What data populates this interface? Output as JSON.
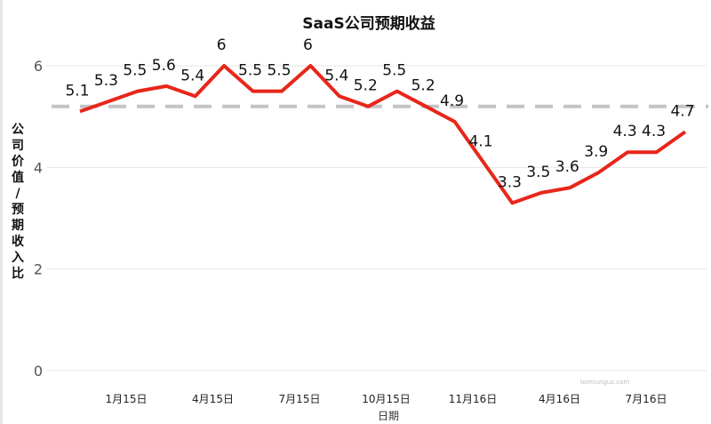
{
  "chart_data": {
    "type": "line",
    "title": "SaaS公司预期收益",
    "xlabel": "日期",
    "ylabel": "公司价值/预期收入比",
    "ylim": [
      0,
      6.2
    ],
    "yticks": [
      0,
      2,
      4,
      6
    ],
    "x_tick_labels": [
      "1月15日",
      "4月15日",
      "7月15日",
      "10月15日",
      "11月16日",
      "4月16日",
      "7月16日"
    ],
    "values": [
      5.1,
      5.3,
      5.5,
      5.6,
      5.4,
      6,
      5.5,
      5.5,
      6,
      5.4,
      5.2,
      5.5,
      5.2,
      4.9,
      4.1,
      3.3,
      3.5,
      3.6,
      3.9,
      4.3,
      4.3,
      4.7
    ],
    "data_labels": [
      "5.1",
      "5.3",
      "5.5",
      "5.6",
      "5.4",
      "6",
      "5.5",
      "5.5",
      "6",
      "5.4",
      "5.2",
      "5.5",
      "5.2",
      "4.9",
      "4.1",
      "3.3",
      "3.5",
      "3.6",
      "3.9",
      "4.3",
      "4.3",
      "4.7"
    ],
    "reference_line": 5.2,
    "grid": "horizontal",
    "colors": {
      "line": "#e8261a",
      "reference": "#c4c4c4",
      "grid": "#e6e6e6"
    }
  },
  "watermark": "tomtunguz.com"
}
